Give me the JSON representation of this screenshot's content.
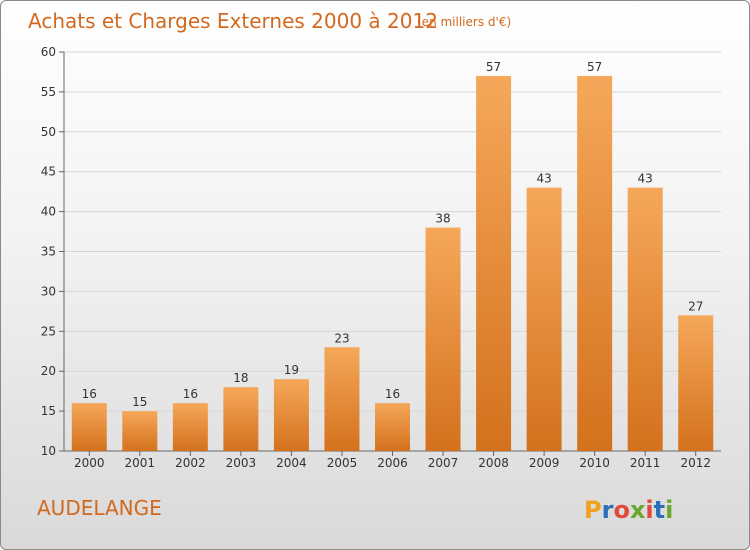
{
  "chart_data": {
    "type": "bar",
    "title": "Achats et Charges Externes 2000 à 2012",
    "subtitle": "(en milliers d'€)",
    "categories": [
      "2000",
      "2001",
      "2002",
      "2003",
      "2004",
      "2005",
      "2006",
      "2007",
      "2008",
      "2009",
      "2010",
      "2011",
      "2012"
    ],
    "values": [
      16,
      15,
      16,
      18,
      19,
      23,
      16,
      38,
      57,
      43,
      57,
      43,
      27
    ],
    "ylim": [
      10,
      60
    ],
    "yticks": [
      10,
      15,
      20,
      25,
      30,
      35,
      40,
      45,
      50,
      55,
      60
    ],
    "xlabel": "",
    "ylabel": "",
    "grid": true,
    "legend": "none",
    "bar_color_top": "#f5a85a",
    "bar_color_bottom": "#d4711c",
    "title_color": "#d2691e"
  },
  "location": "AUDELANGE",
  "brand": {
    "letters": [
      "P",
      "r",
      "o",
      "x",
      "i",
      "t",
      "i"
    ],
    "colors": [
      "#f0a21e",
      "#2a6fb8",
      "#e14a3a",
      "#6aa72e",
      "#e14a3a",
      "#2a6fb8",
      "#6aa72e"
    ]
  }
}
